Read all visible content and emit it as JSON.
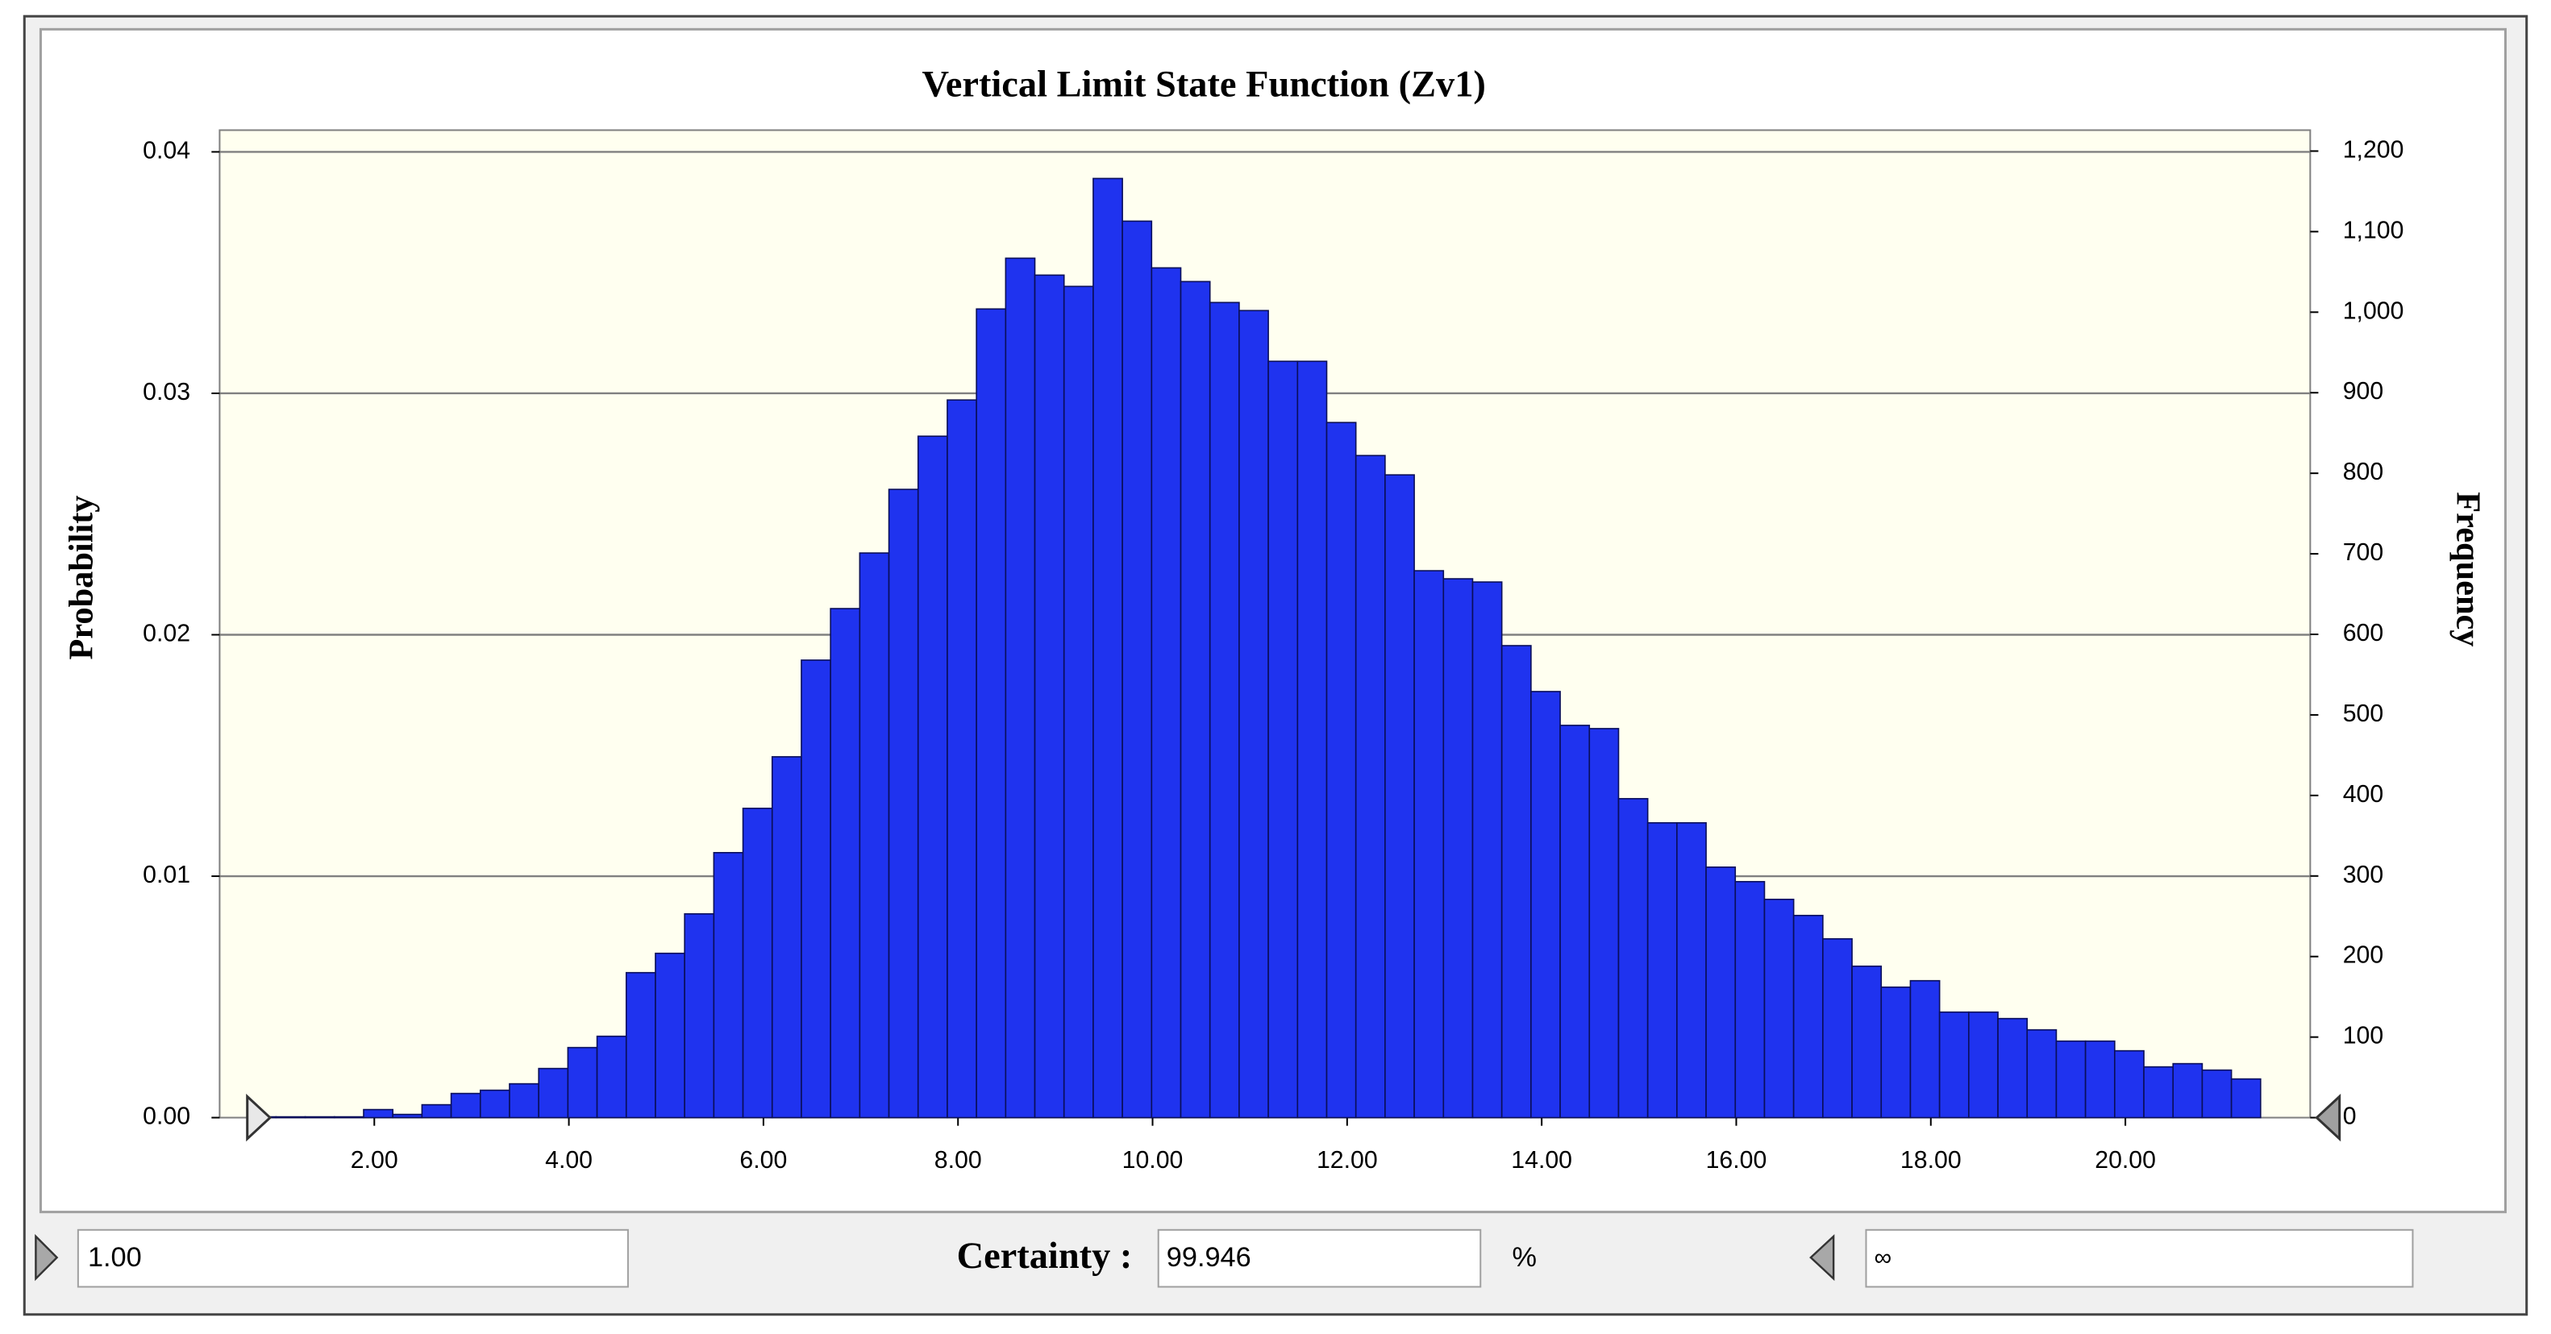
{
  "chart_data": {
    "type": "histogram",
    "title": "Vertical Limit State Function (Zv1)",
    "y_label": "Probability",
    "y2_label": "Frequency",
    "bins": [
      0.69,
      0.99,
      1.29,
      1.59,
      1.89,
      2.19,
      2.49,
      2.79,
      3.09,
      3.39,
      3.69,
      3.99,
      4.29,
      4.59,
      4.89,
      5.19,
      5.49,
      5.79,
      6.09,
      6.39,
      6.69,
      6.99,
      7.29,
      7.59,
      7.89,
      8.19,
      8.49,
      8.79,
      9.09,
      9.39,
      9.69,
      9.99,
      10.29,
      10.59,
      10.89,
      11.19,
      11.49,
      11.79,
      12.09,
      12.39,
      12.69,
      12.99,
      13.29,
      13.59,
      13.89,
      14.19,
      14.49,
      14.79,
      15.09,
      15.39,
      15.69,
      15.99,
      16.29,
      16.59,
      16.89,
      17.19,
      17.49,
      17.79,
      18.09,
      18.39,
      18.69,
      18.99,
      19.29,
      19.59,
      19.89,
      20.19,
      20.49,
      20.79,
      21.09,
      21.39
    ],
    "series": [
      {
        "color": "#1f33ef",
        "axis": "y2",
        "values": [
          1,
          1,
          1,
          1,
          10,
          4,
          16,
          30,
          34,
          42,
          61,
          87,
          101,
          180,
          204,
          253,
          329,
          384,
          448,
          568,
          632,
          701,
          780,
          846,
          891,
          1004,
          1067,
          1046,
          1032,
          1166,
          1113,
          1055,
          1038,
          1012,
          1002,
          939,
          939,
          863,
          822,
          798,
          679,
          669,
          665,
          586,
          529,
          487,
          483,
          396,
          366,
          366,
          311,
          293,
          271,
          251,
          222,
          188,
          162,
          170,
          131,
          131,
          123,
          109,
          95,
          95,
          83,
          63,
          67,
          59,
          48
        ]
      }
    ],
    "xlim": [
      0.41,
      21.9
    ],
    "xticks": [
      {
        "value": 2,
        "label": "2.00"
      },
      {
        "value": 4,
        "label": "4.00"
      },
      {
        "value": 6,
        "label": "6.00"
      },
      {
        "value": 8,
        "label": "8.00"
      },
      {
        "value": 10,
        "label": "10.00"
      },
      {
        "value": 12,
        "label": "12.00"
      },
      {
        "value": 14,
        "label": "14.00"
      },
      {
        "value": 16,
        "label": "16.00"
      },
      {
        "value": 18,
        "label": "18.00"
      },
      {
        "value": 20,
        "label": "20.00"
      }
    ],
    "ylim": [
      0,
      0.0409
    ],
    "yticks": [
      {
        "value": 0,
        "label": "0.00"
      },
      0.01,
      0.02,
      0.03,
      0.04
    ],
    "y2lim": [
      0,
      1226
    ],
    "y2ticks": [
      0,
      100,
      200,
      300,
      400,
      500,
      600,
      700,
      800,
      900,
      {
        "value": 1000,
        "label": "1,000"
      },
      {
        "value": 1100,
        "label": "1,100"
      },
      {
        "value": 1200,
        "label": "1,200"
      }
    ],
    "grid": true
  },
  "controls": {
    "left_value": "1.00",
    "certainty_label": "Certainty :",
    "certainty_value": "99.946",
    "percent": "%",
    "right_value": "∞"
  }
}
